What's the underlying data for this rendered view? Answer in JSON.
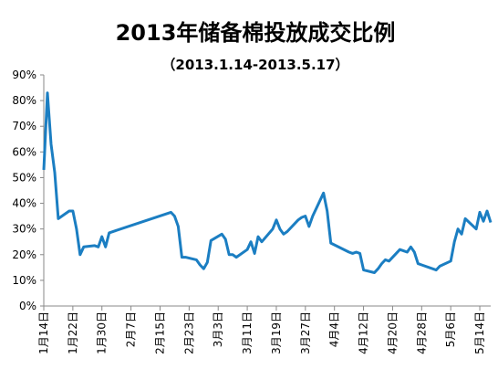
{
  "chart_data": {
    "type": "line",
    "title": "2013年储备棉投放成交比例",
    "subtitle": "（2013.1.14-2013.5.17）",
    "x": [
      "2013-01-14",
      "2013-01-15",
      "2013-01-16",
      "2013-01-17",
      "2013-01-18",
      "2013-01-21",
      "2013-01-22",
      "2013-01-23",
      "2013-01-24",
      "2013-01-25",
      "2013-01-28",
      "2013-01-29",
      "2013-01-30",
      "2013-01-31",
      "2013-02-01",
      "2013-02-18",
      "2013-02-19",
      "2013-02-20",
      "2013-02-21",
      "2013-02-22",
      "2013-02-25",
      "2013-02-26",
      "2013-02-27",
      "2013-02-28",
      "2013-03-01",
      "2013-03-04",
      "2013-03-05",
      "2013-03-06",
      "2013-03-07",
      "2013-03-08",
      "2013-03-11",
      "2013-03-12",
      "2013-03-13",
      "2013-03-14",
      "2013-03-15",
      "2013-03-18",
      "2013-03-19",
      "2013-03-20",
      "2013-03-21",
      "2013-03-22",
      "2013-03-25",
      "2013-03-26",
      "2013-03-27",
      "2013-03-28",
      "2013-03-29",
      "2013-04-01",
      "2013-04-02",
      "2013-04-03",
      "2013-04-08",
      "2013-04-09",
      "2013-04-10",
      "2013-04-11",
      "2013-04-12",
      "2013-04-15",
      "2013-04-16",
      "2013-04-17",
      "2013-04-18",
      "2013-04-19",
      "2013-04-22",
      "2013-04-23",
      "2013-04-24",
      "2013-04-25",
      "2013-04-26",
      "2013-04-27",
      "2013-04-28",
      "2013-05-02",
      "2013-05-03",
      "2013-05-06",
      "2013-05-07",
      "2013-05-08",
      "2013-05-09",
      "2013-05-10",
      "2013-05-13",
      "2013-05-14",
      "2013-05-15",
      "2013-05-16",
      "2013-05-17"
    ],
    "series": [
      {
        "name": "成交比例",
        "color": "#1b7ec2",
        "values": [
          53,
          83,
          63,
          52,
          34,
          37,
          37,
          30,
          20,
          23,
          23.5,
          23,
          27,
          23,
          28.5,
          36.5,
          35,
          31,
          19,
          19,
          18,
          16,
          14.5,
          17,
          25.5,
          28,
          26,
          20,
          20,
          19,
          22,
          25,
          20.5,
          27,
          25,
          30,
          33.5,
          30,
          28,
          29,
          33.5,
          34.5,
          35,
          31,
          35,
          44,
          37,
          24.5,
          21,
          20.5,
          21,
          20.5,
          14,
          13,
          14.5,
          16.5,
          18,
          17.5,
          22,
          21.5,
          21,
          23,
          21,
          16.5,
          16,
          14,
          15.5,
          17.5,
          25,
          30,
          28,
          34,
          30,
          36.5,
          33,
          37,
          32.5
        ]
      }
    ],
    "xlim": [
      "2013-01-14",
      "2013-05-17"
    ],
    "xticks": [
      {
        "value": "2013-01-14",
        "label": "1月14日"
      },
      {
        "value": "2013-01-22",
        "label": "1月22日"
      },
      {
        "value": "2013-01-30",
        "label": "1月30日"
      },
      {
        "value": "2013-02-07",
        "label": "2月7日"
      },
      {
        "value": "2013-02-15",
        "label": "2月15日"
      },
      {
        "value": "2013-02-23",
        "label": "2月23日"
      },
      {
        "value": "2013-03-03",
        "label": "3月3日"
      },
      {
        "value": "2013-03-11",
        "label": "3月11日"
      },
      {
        "value": "2013-03-19",
        "label": "3月19日"
      },
      {
        "value": "2013-03-27",
        "label": "3月27日"
      },
      {
        "value": "2013-04-04",
        "label": "4月4日"
      },
      {
        "value": "2013-04-12",
        "label": "4月12日"
      },
      {
        "value": "2013-04-20",
        "label": "4月20日"
      },
      {
        "value": "2013-04-28",
        "label": "4月28日"
      },
      {
        "value": "2013-05-06",
        "label": "5月6日"
      },
      {
        "value": "2013-05-14",
        "label": "5月14日"
      }
    ],
    "ylim": [
      0,
      90
    ],
    "yticks": [
      {
        "value": 0,
        "label": "0%"
      },
      {
        "value": 10,
        "label": "10%"
      },
      {
        "value": 20,
        "label": "20%"
      },
      {
        "value": 30,
        "label": "30%"
      },
      {
        "value": 40,
        "label": "40%"
      },
      {
        "value": 50,
        "label": "50%"
      },
      {
        "value": 60,
        "label": "60%"
      },
      {
        "value": 70,
        "label": "70%"
      },
      {
        "value": 80,
        "label": "80%"
      },
      {
        "value": 90,
        "label": "90%"
      }
    ]
  }
}
